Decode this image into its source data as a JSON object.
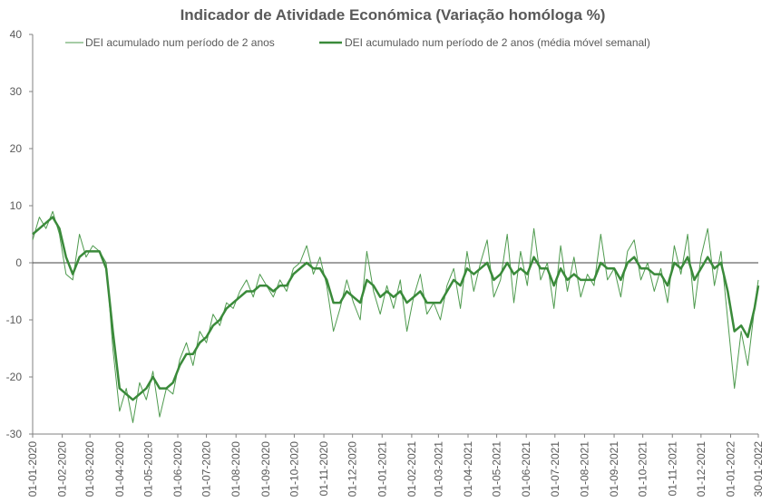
{
  "chart_data": {
    "type": "line",
    "title": "Indicador de Atividade Económica (Variação homóloga %)",
    "xlabel": "",
    "ylabel": "",
    "ylim": [
      -30,
      40
    ],
    "yticks": [
      "40",
      "30",
      "20",
      "10",
      "0",
      "-10",
      "-20",
      "-30"
    ],
    "xticks": [
      "01-01-2020",
      "01-02-2020",
      "01-03-2020",
      "01-04-2020",
      "01-05-2020",
      "01-06-2020",
      "01-07-2020",
      "01-08-2020",
      "01-09-2020",
      "01-10-2020",
      "01-11-2020",
      "01-12-2020",
      "01-01-2021",
      "01-02-2021",
      "01-03-2021",
      "01-04-2021",
      "01-05-2021",
      "01-06-2021",
      "01-07-2021",
      "01-08-2021",
      "01-09-2021",
      "01-10-2021",
      "01-11-2021",
      "01-12-2021",
      "01-01-2022",
      "30-01-2022"
    ],
    "x_range": [
      "2020-01-01",
      "2022-01-30"
    ],
    "grid": false,
    "legend_position": "top",
    "series": [
      {
        "name": "DEI acumulado num período de 2 anos",
        "color": "#4e9a4e",
        "style": "thin",
        "x": [
          "2020-01-01",
          "2020-01-08",
          "2020-01-15",
          "2020-01-22",
          "2020-01-29",
          "2020-02-05",
          "2020-02-12",
          "2020-02-19",
          "2020-02-26",
          "2020-03-04",
          "2020-03-11",
          "2020-03-18",
          "2020-03-25",
          "2020-04-01",
          "2020-04-08",
          "2020-04-15",
          "2020-04-22",
          "2020-04-29",
          "2020-05-06",
          "2020-05-13",
          "2020-05-20",
          "2020-05-27",
          "2020-06-03",
          "2020-06-10",
          "2020-06-17",
          "2020-06-24",
          "2020-07-01",
          "2020-07-08",
          "2020-07-15",
          "2020-07-22",
          "2020-07-29",
          "2020-08-05",
          "2020-08-12",
          "2020-08-19",
          "2020-08-26",
          "2020-09-02",
          "2020-09-09",
          "2020-09-16",
          "2020-09-23",
          "2020-09-30",
          "2020-10-07",
          "2020-10-14",
          "2020-10-21",
          "2020-10-28",
          "2020-11-04",
          "2020-11-11",
          "2020-11-18",
          "2020-11-25",
          "2020-12-02",
          "2020-12-09",
          "2020-12-16",
          "2020-12-23",
          "2020-12-30",
          "2021-01-06",
          "2021-01-13",
          "2021-01-20",
          "2021-01-27",
          "2021-02-03",
          "2021-02-10",
          "2021-02-17",
          "2021-02-24",
          "2021-03-03",
          "2021-03-10",
          "2021-03-17",
          "2021-03-24",
          "2021-03-31",
          "2021-04-07",
          "2021-04-14",
          "2021-04-21",
          "2021-04-28",
          "2021-05-05",
          "2021-05-12",
          "2021-05-19",
          "2021-05-26",
          "2021-06-02",
          "2021-06-09",
          "2021-06-16",
          "2021-06-23",
          "2021-06-30",
          "2021-07-07",
          "2021-07-14",
          "2021-07-21",
          "2021-07-28",
          "2021-08-04",
          "2021-08-11",
          "2021-08-18",
          "2021-08-25",
          "2021-09-01",
          "2021-09-08",
          "2021-09-15",
          "2021-09-22",
          "2021-09-29",
          "2021-10-06",
          "2021-10-13",
          "2021-10-20",
          "2021-10-27",
          "2021-11-03",
          "2021-11-10",
          "2021-11-17",
          "2021-11-24",
          "2021-12-01",
          "2021-12-08",
          "2021-12-15",
          "2021-12-22",
          "2021-12-29",
          "2022-01-05",
          "2022-01-12",
          "2022-01-19",
          "2022-01-26",
          "2022-01-30"
        ],
        "values": [
          4,
          8,
          6,
          9,
          5,
          -2,
          -3,
          5,
          1,
          3,
          2,
          0,
          -15,
          -26,
          -22,
          -28,
          -21,
          -24,
          -19,
          -27,
          -22,
          -23,
          -17,
          -14,
          -18,
          -12,
          -14,
          -9,
          -11,
          -7,
          -8,
          -5,
          -3,
          -6,
          -2,
          -4,
          -6,
          -3,
          -5,
          -1,
          0,
          3,
          -2,
          1,
          -4,
          -12,
          -8,
          -3,
          -7,
          -10,
          2,
          -5,
          -9,
          -4,
          -8,
          -3,
          -12,
          -6,
          -2,
          -9,
          -7,
          -10,
          -4,
          -1,
          -8,
          2,
          -5,
          0,
          4,
          -6,
          -3,
          5,
          -7,
          2,
          -4,
          6,
          -3,
          0,
          -8,
          3,
          -5,
          1,
          -6,
          -2,
          -4,
          5,
          -3,
          -1,
          -6,
          2,
          4,
          -3,
          0,
          -5,
          -1,
          -7,
          3,
          -2,
          5,
          -8,
          1,
          6,
          -4,
          2,
          -10,
          -22,
          -12,
          -18,
          -8,
          -3
        ],
        "y_min_shown": -30
      },
      {
        "name": "DEI acumulado num período de 2 anos (média móvel semanal)",
        "color": "#3a8a3a",
        "style": "thick",
        "x": [
          "2020-01-01",
          "2020-01-08",
          "2020-01-15",
          "2020-01-22",
          "2020-01-29",
          "2020-02-05",
          "2020-02-12",
          "2020-02-19",
          "2020-02-26",
          "2020-03-04",
          "2020-03-11",
          "2020-03-18",
          "2020-03-25",
          "2020-04-01",
          "2020-04-08",
          "2020-04-15",
          "2020-04-22",
          "2020-04-29",
          "2020-05-06",
          "2020-05-13",
          "2020-05-20",
          "2020-05-27",
          "2020-06-03",
          "2020-06-10",
          "2020-06-17",
          "2020-06-24",
          "2020-07-01",
          "2020-07-08",
          "2020-07-15",
          "2020-07-22",
          "2020-07-29",
          "2020-08-05",
          "2020-08-12",
          "2020-08-19",
          "2020-08-26",
          "2020-09-02",
          "2020-09-09",
          "2020-09-16",
          "2020-09-23",
          "2020-09-30",
          "2020-10-07",
          "2020-10-14",
          "2020-10-21",
          "2020-10-28",
          "2020-11-04",
          "2020-11-11",
          "2020-11-18",
          "2020-11-25",
          "2020-12-02",
          "2020-12-09",
          "2020-12-16",
          "2020-12-23",
          "2020-12-30",
          "2021-01-06",
          "2021-01-13",
          "2021-01-20",
          "2021-01-27",
          "2021-02-03",
          "2021-02-10",
          "2021-02-17",
          "2021-02-24",
          "2021-03-03",
          "2021-03-10",
          "2021-03-17",
          "2021-03-24",
          "2021-03-31",
          "2021-04-07",
          "2021-04-14",
          "2021-04-21",
          "2021-04-28",
          "2021-05-05",
          "2021-05-12",
          "2021-05-19",
          "2021-05-26",
          "2021-06-02",
          "2021-06-09",
          "2021-06-16",
          "2021-06-23",
          "2021-06-30",
          "2021-07-07",
          "2021-07-14",
          "2021-07-21",
          "2021-07-28",
          "2021-08-04",
          "2021-08-11",
          "2021-08-18",
          "2021-08-25",
          "2021-09-01",
          "2021-09-08",
          "2021-09-15",
          "2021-09-22",
          "2021-09-29",
          "2021-10-06",
          "2021-10-13",
          "2021-10-20",
          "2021-10-27",
          "2021-11-03",
          "2021-11-10",
          "2021-11-17",
          "2021-11-24",
          "2021-12-01",
          "2021-12-08",
          "2021-12-15",
          "2021-12-22",
          "2021-12-29",
          "2022-01-05",
          "2022-01-12",
          "2022-01-19",
          "2022-01-26",
          "2022-01-30"
        ],
        "values": [
          5,
          6,
          7,
          8,
          6,
          1,
          -2,
          1,
          2,
          2,
          2,
          -1,
          -12,
          -22,
          -23,
          -24,
          -23,
          -22,
          -20,
          -22,
          -22,
          -21,
          -18,
          -16,
          -16,
          -14,
          -13,
          -11,
          -10,
          -8,
          -7,
          -6,
          -5,
          -5,
          -4,
          -4,
          -5,
          -4,
          -4,
          -2,
          -1,
          0,
          -1,
          -1,
          -3,
          -7,
          -7,
          -5,
          -6,
          -7,
          -3,
          -4,
          -6,
          -5,
          -6,
          -5,
          -7,
          -6,
          -5,
          -7,
          -7,
          -7,
          -5,
          -3,
          -4,
          -1,
          -2,
          -1,
          0,
          -3,
          -2,
          0,
          -2,
          -1,
          -2,
          1,
          -1,
          -1,
          -4,
          -1,
          -3,
          -2,
          -3,
          -3,
          -3,
          0,
          -1,
          -1,
          -3,
          0,
          1,
          -1,
          -1,
          -2,
          -2,
          -4,
          0,
          -1,
          1,
          -3,
          -1,
          1,
          -1,
          0,
          -5,
          -12,
          -11,
          -13,
          -8,
          -4
        ]
      }
    ]
  }
}
